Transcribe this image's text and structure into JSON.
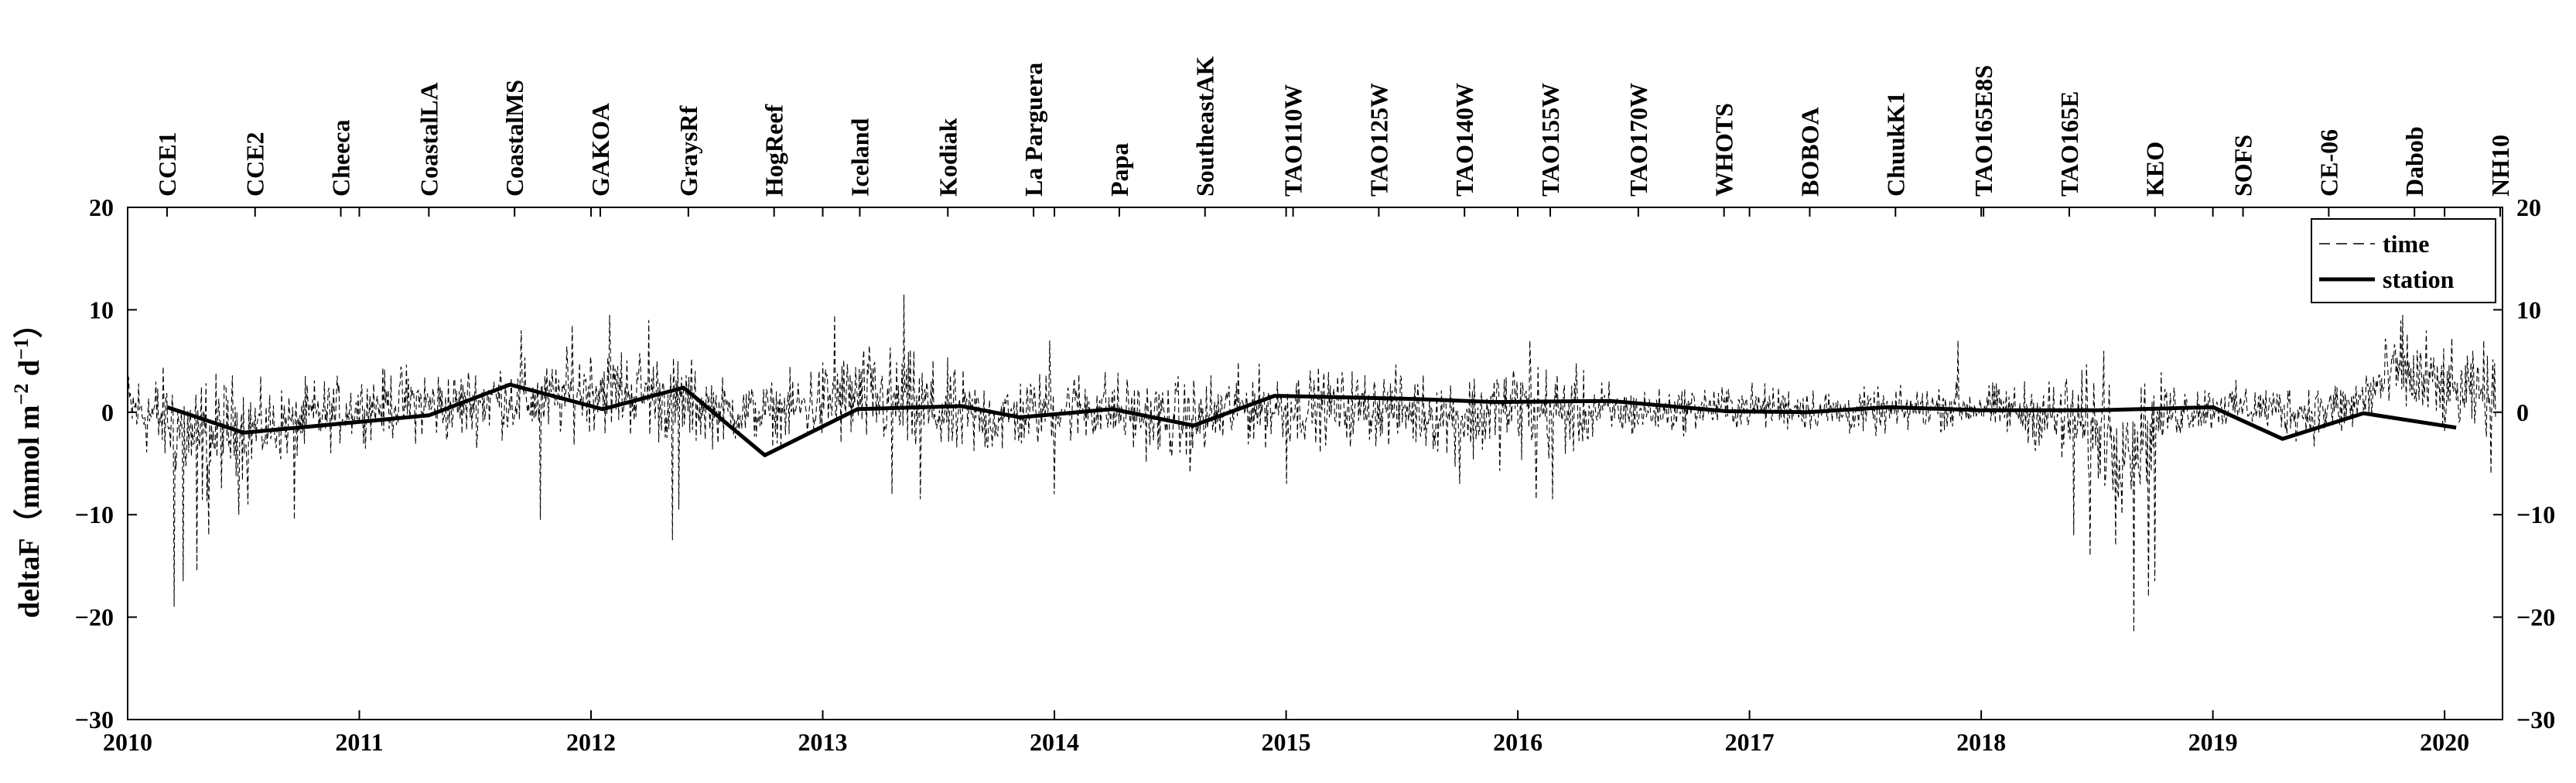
{
  "chart_data": {
    "type": "line",
    "xlim": [
      2010,
      2020.25
    ],
    "ylim": [
      -30,
      20
    ],
    "x_ticks": [
      2010,
      2011,
      2012,
      2013,
      2014,
      2015,
      2016,
      2017,
      2018,
      2019,
      2020
    ],
    "x_tick_labels": [
      "2010",
      "2011",
      "2012",
      "2013",
      "2014",
      "2015",
      "2016",
      "2017",
      "2018",
      "2019",
      "2020"
    ],
    "y_ticks": [
      -30,
      -20,
      -10,
      0,
      10,
      20
    ],
    "y_tick_labels": [
      "−30",
      "−20",
      "−10",
      "0",
      "10",
      "20"
    ],
    "ylabel": {
      "base": "deltaF（mmol m",
      "sup1": "−2",
      "mid": " d",
      "sup2": "−1",
      "end": "）"
    },
    "legend": {
      "placement": "top-right",
      "entries": [
        {
          "label": "time",
          "style": "dashed-thin"
        },
        {
          "label": "station",
          "style": "solid-thick"
        }
      ]
    },
    "top_categories": [
      {
        "label": "CCE1",
        "x": 2010.17
      },
      {
        "label": "CCE2",
        "x": 2010.55
      },
      {
        "label": "Cheeca",
        "x": 2010.92
      },
      {
        "label": "CoastalLA",
        "x": 2011.3
      },
      {
        "label": "CoastalMS",
        "x": 2011.67
      },
      {
        "label": "GAKOA",
        "x": 2012.04
      },
      {
        "label": "GraysRf",
        "x": 2012.42
      },
      {
        "label": "HogReef",
        "x": 2012.79
      },
      {
        "label": "Iceland",
        "x": 2013.16
      },
      {
        "label": "Kodiak",
        "x": 2013.54
      },
      {
        "label": "La Parguera",
        "x": 2013.91
      },
      {
        "label": "Papa",
        "x": 2014.28
      },
      {
        "label": "SoutheastAK",
        "x": 2014.65
      },
      {
        "label": "TAO110W",
        "x": 2015.03
      },
      {
        "label": "TAO125W",
        "x": 2015.4
      },
      {
        "label": "TAO140W",
        "x": 2015.77
      },
      {
        "label": "TAO155W",
        "x": 2016.14
      },
      {
        "label": "TAO170W",
        "x": 2016.52
      },
      {
        "label": "WHOTS",
        "x": 2016.89
      },
      {
        "label": "BOBOA",
        "x": 2017.26
      },
      {
        "label": "ChuukK1",
        "x": 2017.63
      },
      {
        "label": "TAO165E8S",
        "x": 2018.01
      },
      {
        "label": "TAO165E",
        "x": 2018.38
      },
      {
        "label": "KEO",
        "x": 2018.75
      },
      {
        "label": "SOFS",
        "x": 2019.13
      },
      {
        "label": "CE-06",
        "x": 2019.5
      },
      {
        "label": "Dabob",
        "x": 2019.87
      },
      {
        "label": "NH10",
        "x": 2020.24
      }
    ],
    "series": [
      {
        "name": "station",
        "x": [
          2010.17,
          2010.5,
          2011.3,
          2011.65,
          2012.05,
          2012.4,
          2012.75,
          2013.15,
          2013.6,
          2013.85,
          2014.25,
          2014.6,
          2014.95,
          2015.55,
          2015.9,
          2016.4,
          2016.9,
          2017.25,
          2017.6,
          2018.0,
          2018.5,
          2019.0,
          2019.3,
          2019.65,
          2020.05
        ],
        "y": [
          0.5,
          -2.0,
          -0.3,
          2.7,
          0.3,
          2.4,
          -4.2,
          0.3,
          0.6,
          -0.5,
          0.3,
          -1.3,
          1.6,
          1.3,
          1.0,
          1.1,
          0.1,
          0.0,
          0.5,
          0.2,
          0.2,
          0.5,
          -2.6,
          -0.1,
          -1.5
        ]
      },
      {
        "name": "time",
        "anchors": {
          "x": [
            2010.0,
            2010.2,
            2010.3,
            2010.45,
            2010.6,
            2010.8,
            2011.0,
            2011.2,
            2011.4,
            2011.6,
            2011.8,
            2012.0,
            2012.2,
            2012.4,
            2012.6,
            2012.8,
            2013.0,
            2013.2,
            2013.4,
            2013.6,
            2013.8,
            2014.0,
            2014.2,
            2014.4,
            2014.6,
            2014.8,
            2015.0,
            2015.2,
            2015.4,
            2015.6,
            2015.8,
            2016.0,
            2016.2,
            2016.4,
            2016.6,
            2016.8,
            2017.0,
            2017.2,
            2017.4,
            2017.6,
            2017.8,
            2018.0,
            2018.2,
            2018.4,
            2018.5,
            2018.6,
            2018.7,
            2018.8,
            2019.0,
            2019.2,
            2019.4,
            2019.6,
            2019.8,
            2020.0,
            2020.2
          ],
          "mean": [
            0.5,
            -1.0,
            -3.0,
            -1.5,
            -1.5,
            -0.5,
            0.5,
            1.0,
            0.5,
            1.5,
            1.0,
            2.5,
            2.0,
            1.0,
            0.0,
            0.0,
            1.0,
            1.5,
            0.5,
            -0.5,
            -0.5,
            0.5,
            0.5,
            -0.5,
            -1.0,
            0.5,
            0.5,
            0.5,
            0.5,
            0.0,
            -0.5,
            0.5,
            0.0,
            0.0,
            0.0,
            0.5,
            0.5,
            0.5,
            0.0,
            0.0,
            0.5,
            0.5,
            0.0,
            -1.0,
            -2.0,
            -2.5,
            -2.0,
            0.0,
            0.5,
            0.5,
            0.0,
            0.5,
            4.0,
            2.0,
            1.5
          ],
          "amplitude": [
            2.5,
            3.5,
            4.5,
            3.5,
            2.5,
            2.5,
            2.0,
            2.5,
            2.5,
            2.5,
            2.5,
            3.0,
            3.0,
            3.0,
            2.0,
            2.0,
            3.0,
            3.5,
            3.5,
            3.0,
            2.5,
            2.5,
            2.5,
            2.5,
            3.0,
            2.5,
            2.5,
            2.5,
            2.5,
            2.5,
            3.0,
            3.5,
            3.0,
            2.0,
            1.5,
            1.5,
            1.5,
            1.5,
            1.5,
            1.5,
            1.5,
            1.5,
            2.0,
            3.5,
            4.0,
            4.5,
            4.0,
            2.0,
            1.5,
            1.5,
            2.0,
            2.0,
            3.0,
            3.0,
            2.5
          ]
        },
        "spikes": [
          {
            "x": 2010.2,
            "y": -19.0
          },
          {
            "x": 2010.24,
            "y": -16.5
          },
          {
            "x": 2010.3,
            "y": -15.5
          },
          {
            "x": 2010.35,
            "y": -12.0
          },
          {
            "x": 2010.48,
            "y": -10.0
          },
          {
            "x": 2010.52,
            "y": -9.0
          },
          {
            "x": 2010.72,
            "y": -10.5
          },
          {
            "x": 2011.78,
            "y": -10.5
          },
          {
            "x": 2011.7,
            "y": 8.0
          },
          {
            "x": 2011.92,
            "y": 8.5
          },
          {
            "x": 2012.08,
            "y": 9.5
          },
          {
            "x": 2012.25,
            "y": 9.0
          },
          {
            "x": 2012.35,
            "y": -12.5
          },
          {
            "x": 2012.38,
            "y": -9.5
          },
          {
            "x": 2013.05,
            "y": 9.5
          },
          {
            "x": 2013.35,
            "y": 11.5
          },
          {
            "x": 2013.42,
            "y": -8.5
          },
          {
            "x": 2013.3,
            "y": -8.0
          },
          {
            "x": 2013.98,
            "y": 7.0
          },
          {
            "x": 2014.0,
            "y": -8.0
          },
          {
            "x": 2015.0,
            "y": 9.0
          },
          {
            "x": 2015.0,
            "y": -7.0
          },
          {
            "x": 2015.75,
            "y": -7.0
          },
          {
            "x": 2016.05,
            "y": 7.0
          },
          {
            "x": 2016.08,
            "y": -8.5
          },
          {
            "x": 2016.15,
            "y": -8.5
          },
          {
            "x": 2017.9,
            "y": 7.0
          },
          {
            "x": 2018.4,
            "y": -12.0
          },
          {
            "x": 2018.47,
            "y": -14.0
          },
          {
            "x": 2018.53,
            "y": 6.0
          },
          {
            "x": 2018.58,
            "y": -13.0
          },
          {
            "x": 2018.66,
            "y": -21.5
          },
          {
            "x": 2018.72,
            "y": -18.0
          },
          {
            "x": 2018.75,
            "y": -16.5
          },
          {
            "x": 2019.82,
            "y": 9.5
          },
          {
            "x": 2019.92,
            "y": 8.0
          },
          {
            "x": 2020.17,
            "y": 7.0
          },
          {
            "x": 2020.2,
            "y": -6.0
          }
        ]
      }
    ]
  }
}
